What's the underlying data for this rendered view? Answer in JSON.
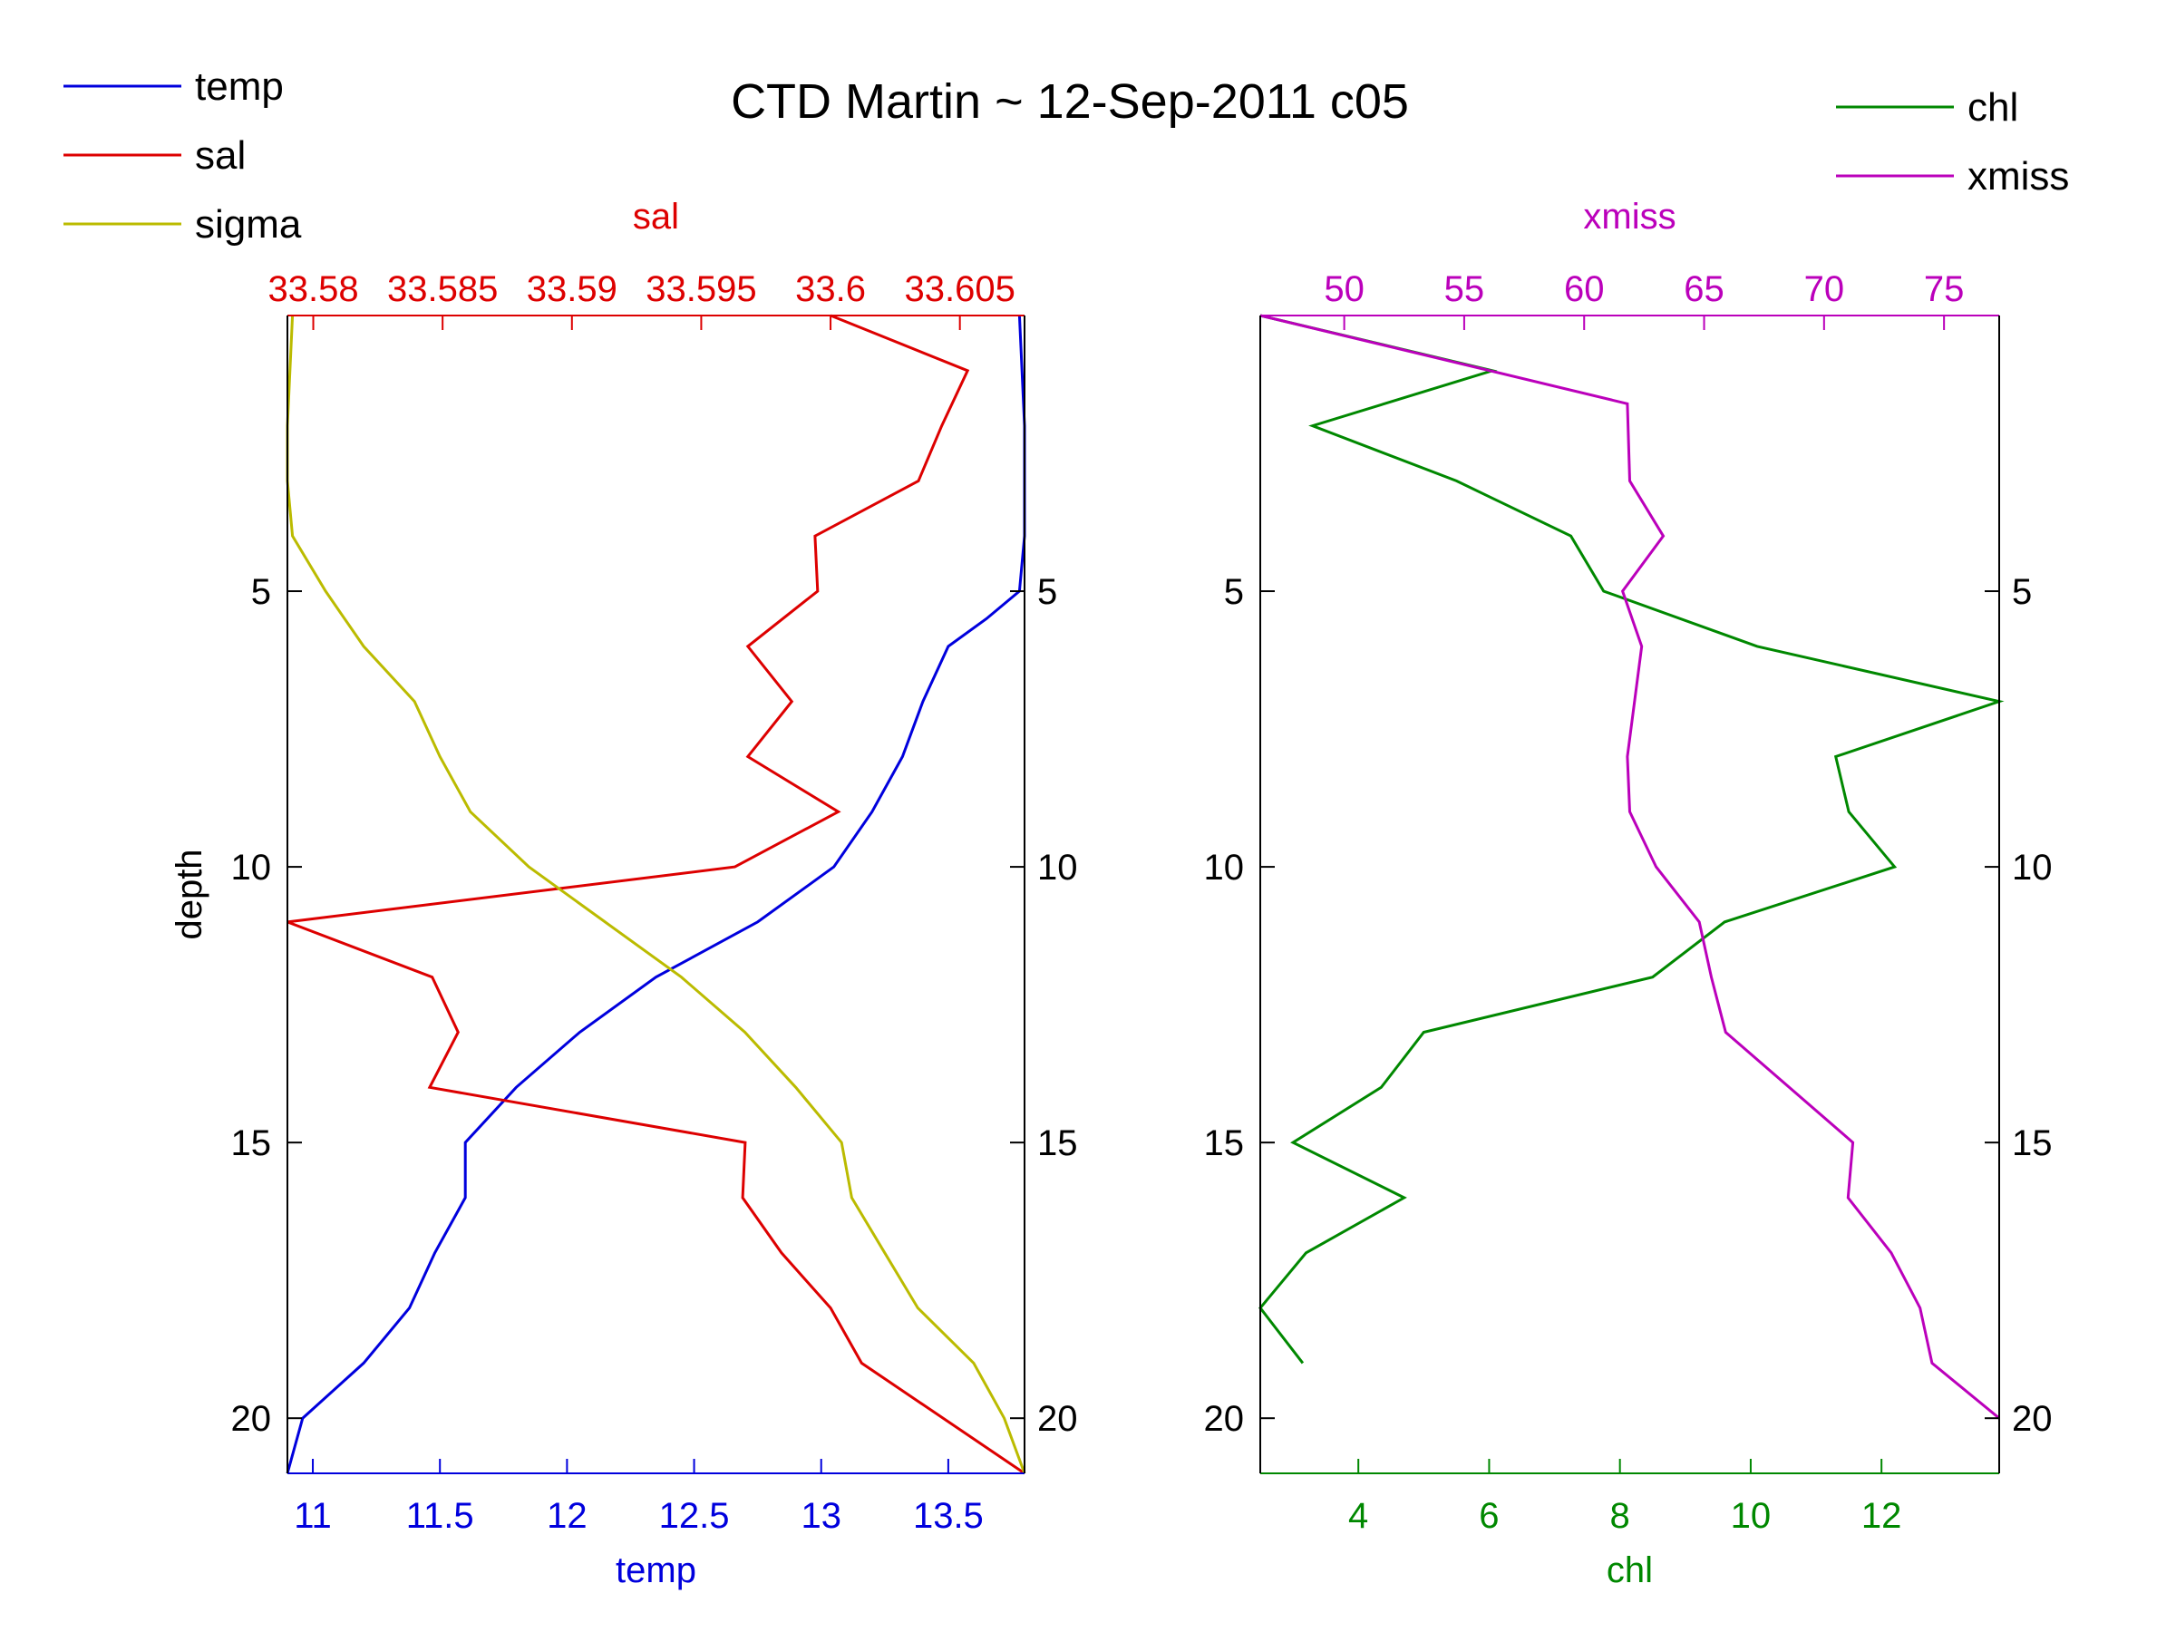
{
  "chart_data": {
    "title": "CTD Martin ~ 12-Sep-2011 c05",
    "colors": {
      "temp": "#0000dd",
      "sal": "#dd0000",
      "sigma": "#bbbb00",
      "chl": "#008800",
      "xmiss": "#bb00bb",
      "axes": "#000000"
    },
    "panels": [
      {
        "id": "left",
        "type": "line",
        "ylabel": "depth",
        "ylim": [
          0,
          21
        ],
        "yreversed": true,
        "yticks": [
          5,
          10,
          15,
          20
        ],
        "bottom_axis": {
          "label": "temp",
          "color_key": "temp",
          "lim": [
            10.9,
            13.8
          ],
          "ticks": [
            11,
            11.5,
            12,
            12.5,
            13,
            13.5
          ],
          "tick_labels": [
            "11",
            "11.5",
            "12",
            "12.5",
            "13",
            "13.5"
          ]
        },
        "top_axis": {
          "label": "sal",
          "color_key": "sal",
          "lim": [
            33.579,
            33.6075
          ],
          "ticks": [
            33.58,
            33.585,
            33.59,
            33.595,
            33.6,
            33.605
          ],
          "tick_labels": [
            "33.58",
            "33.585",
            "33.59",
            "33.595",
            "33.6",
            "33.605"
          ]
        },
        "legend": {
          "placement": "top-left",
          "entries": [
            "temp",
            "sal",
            "sigma"
          ]
        },
        "series": [
          {
            "name": "temp",
            "color_key": "temp",
            "axis": "bottom",
            "x": [
              13.78,
              13.8,
              13.8,
              13.8,
              13.78,
              13.65,
              13.5,
              13.4,
              13.32,
              13.2,
              13.05,
              12.75,
              12.35,
              12.05,
              11.8,
              11.6,
              11.6,
              11.48,
              11.38,
              11.2,
              10.96,
              10.9
            ],
            "y": [
              0,
              2,
              3,
              4,
              5,
              5.5,
              6,
              7,
              8,
              9,
              10,
              11,
              12,
              13,
              14,
              15,
              16,
              17,
              18,
              19,
              20,
              21
            ]
          },
          {
            "name": "sal",
            "color_key": "sal",
            "axis": "top",
            "x": [
              33.6,
              33.6053,
              33.6043,
              33.6034,
              33.5994,
              33.5995,
              33.5968,
              33.5985,
              33.5968,
              33.6003,
              33.5963,
              33.579,
              33.5846,
              33.5856,
              33.5845,
              33.5967,
              33.5966,
              33.5981,
              33.6,
              33.6012,
              33.6075
            ],
            "y": [
              0,
              1,
              2,
              3,
              4,
              5,
              6,
              7,
              8,
              9,
              10,
              11,
              12,
              13,
              14,
              15,
              16,
              17,
              18,
              19,
              21
            ]
          },
          {
            "name": "sigma",
            "color_key": "sigma",
            "axis": "bottom",
            "x": [
              10.92,
              10.9,
              10.9,
              10.92,
              11.05,
              11.2,
              11.4,
              11.5,
              11.62,
              11.85,
              12.15,
              12.45,
              12.7,
              12.9,
              13.08,
              13.12,
              13.25,
              13.38,
              13.6,
              13.72,
              13.8
            ],
            "y": [
              0,
              2,
              3,
              4,
              5,
              6,
              7,
              8,
              9,
              10,
              11,
              12,
              13,
              14,
              15,
              16,
              17,
              18,
              19,
              20,
              21
            ]
          }
        ]
      },
      {
        "id": "right",
        "type": "line",
        "ylim": [
          0,
          21
        ],
        "yreversed": true,
        "yticks": [
          5,
          10,
          15,
          20
        ],
        "bottom_axis": {
          "label": "chl",
          "color_key": "chl",
          "lim": [
            2.5,
            13.8
          ],
          "ticks": [
            4,
            6,
            8,
            10,
            12
          ],
          "tick_labels": [
            "4",
            "6",
            "8",
            "10",
            "12"
          ]
        },
        "top_axis": {
          "label": "xmiss",
          "color_key": "xmiss",
          "lim": [
            46.5,
            77.3
          ],
          "ticks": [
            50,
            55,
            60,
            65,
            70,
            75
          ],
          "tick_labels": [
            "50",
            "55",
            "60",
            "65",
            "70",
            "75"
          ]
        },
        "legend": {
          "placement": "top-right",
          "entries": [
            "chl",
            "xmiss"
          ]
        },
        "series": [
          {
            "name": "chl",
            "color_key": "chl",
            "axis": "bottom",
            "x": [
              2.5,
              6.05,
              3.3,
              5.5,
              7.25,
              7.75,
              10.1,
              13.8,
              11.3,
              11.5,
              12.2,
              9.6,
              8.5,
              5.0,
              4.35,
              3.0,
              4.7,
              3.2,
              2.5,
              3.15
            ],
            "y": [
              0,
              1,
              2,
              3,
              4,
              5,
              6,
              7,
              8,
              9,
              10,
              11,
              12,
              13,
              14,
              15,
              16,
              17,
              18,
              19
            ]
          },
          {
            "name": "xmiss",
            "color_key": "xmiss",
            "axis": "top",
            "x": [
              46.5,
              61.8,
              61.9,
              63.3,
              61.6,
              62.4,
              61.8,
              61.9,
              63.0,
              64.8,
              65.3,
              65.9,
              71.2,
              71.0,
              72.8,
              74.0,
              74.5,
              77.3
            ],
            "y": [
              0,
              1.6,
              3,
              4,
              5,
              6,
              8,
              9,
              10,
              11,
              12,
              13,
              15,
              16,
              17,
              18,
              19,
              20
            ]
          }
        ]
      }
    ]
  }
}
